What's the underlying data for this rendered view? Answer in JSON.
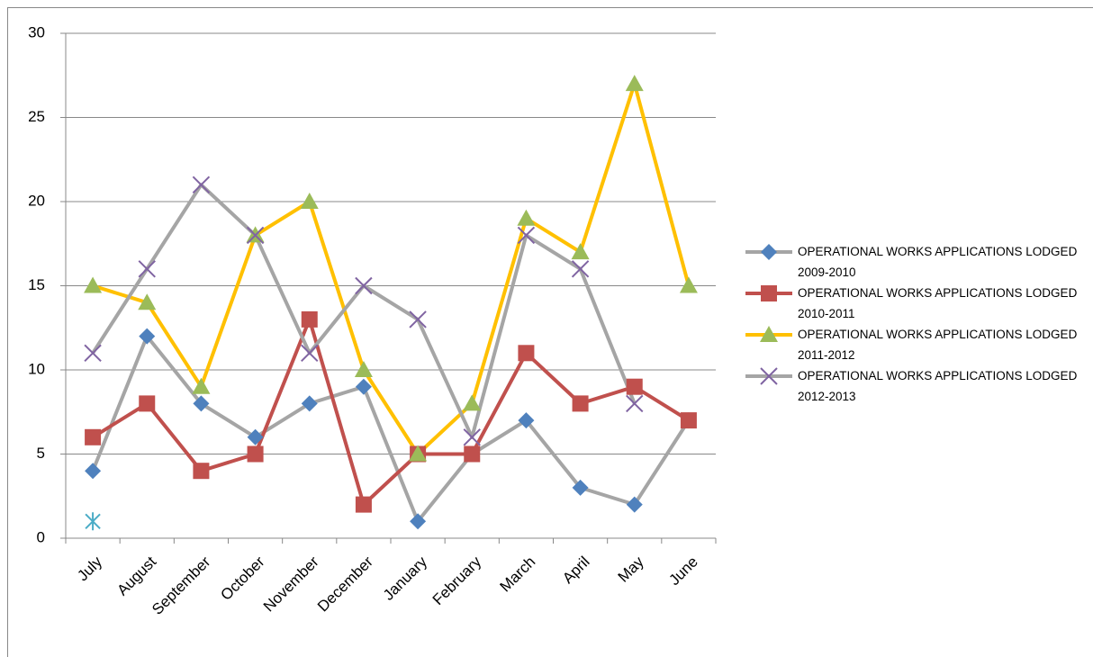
{
  "chart_data": {
    "type": "line",
    "categories": [
      "July",
      "August",
      "September",
      "October",
      "November",
      "December",
      "January",
      "February",
      "March",
      "April",
      "May",
      "June"
    ],
    "ylim": [
      0,
      30
    ],
    "yticks": [
      0,
      5,
      10,
      15,
      20,
      25,
      30
    ],
    "grid": true,
    "legend": "right",
    "series": [
      {
        "name": "OPERATIONAL WORKS APPLICATIONS LODGED 2009-2010",
        "color": "#a5a5a5",
        "marker": "diamond",
        "marker_color": "#4f81bd",
        "values": [
          4,
          12,
          8,
          6,
          8,
          9,
          1,
          5,
          7,
          3,
          2,
          7
        ]
      },
      {
        "name": "OPERATIONAL WORKS APPLICATIONS LODGED 2010-2011",
        "color": "#c0504d",
        "marker": "square",
        "marker_color": "#c0504d",
        "values": [
          6,
          8,
          4,
          5,
          13,
          2,
          5,
          5,
          11,
          8,
          9,
          7
        ]
      },
      {
        "name": "OPERATIONAL WORKS APPLICATIONS LODGED 2011-2012",
        "color": "#ffc000",
        "marker": "triangle",
        "marker_color": "#9bbb59",
        "values": [
          15,
          14,
          9,
          18,
          20,
          10,
          5,
          8,
          19,
          17,
          27,
          15
        ]
      },
      {
        "name": "OPERATIONAL WORKS APPLICATIONS LODGED 2012-2013",
        "color": "#a5a5a5",
        "marker": "x",
        "marker_color": "#8064a2",
        "values": [
          11,
          16,
          21,
          18,
          11,
          15,
          13,
          6,
          18,
          16,
          8,
          null
        ]
      },
      {
        "marker": "star",
        "marker_color": "#4bacc6",
        "values": [
          1,
          null,
          null,
          null,
          null,
          null,
          null,
          null,
          null,
          null,
          null,
          null
        ]
      }
    ]
  }
}
